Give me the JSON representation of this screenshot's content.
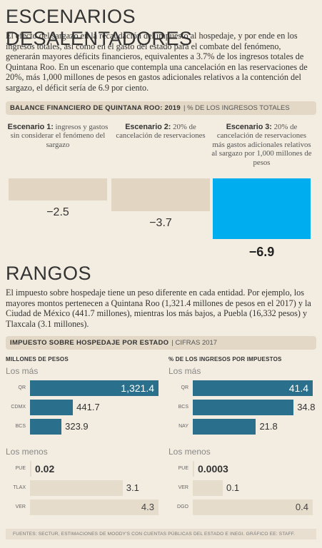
{
  "section1": {
    "title": "ESCENARIOS DESALENTADORES",
    "paragraph": "El efecto del sargazo en la recaudación del impuesto al hospedaje, y por ende en los ingresos totales, así como en el gasto del estado para el combate del fenómeno, generarán mayores déficits financieros, equivalentes a 3.7% de los ingresos totales de Quintana Roo. En un escenario que contempla una cancelación en las reservaciones de 20%, más 1,000 millones de pesos en gastos adicionales relativos a la contención del sargazo, el déficit sería de 6.9 por ciento.",
    "chart_header": "BALANCE FINANCIERO DE QUINTANA ROO: 2019",
    "chart_sub": "% DE LOS INGRESOS TOTALES"
  },
  "section2": {
    "title": "RANGOS",
    "paragraph": "El impuesto sobre hospedaje tiene un peso diferente en cada entidad. Por ejemplo, los mayores montos pertenecen a Quintana Roo (1,321.4 millones de pesos en el 2017) y la Ciudad de México (441.7 millones), mientras los más bajos, a Puebla (16,332 pesos) y Tlaxcala (3.1 millones).",
    "chart_header": "IMPUESTO SOBRE HOSPEDAJE POR ESTADO",
    "chart_sub": "CIFRAS 2017"
  },
  "footer": "FUENTES: SECTUR, ESTIMACIONES DE MOODY'S CON CUENTAS PÚBLICAS DEL ESTADO E INEGI. GRÁFICO EE: STAFF.",
  "colors": {
    "highlight": "#00adef",
    "neutral": "#e2d6c3",
    "bar_dark": "#2a6f8c",
    "bar_light": "#e6dccb"
  },
  "chart_data": [
    {
      "type": "bar",
      "title": "BALANCE FINANCIERO DE QUINTANA ROO: 2019",
      "subtitle": "% DE LOS INGRESOS TOTALES",
      "categories": [
        {
          "bold": "Escenario 1:",
          "text": "ingresos y gastos sin considerar el fenómeno del sargazo"
        },
        {
          "bold": "Escenario 2:",
          "text": "20% de cancelación de reservaciones"
        },
        {
          "bold": "Escenario 3:",
          "text": "20% de cancelación de reservaciones más gastos adicionales relativos al sargazo por 1,000 millones de pesos"
        }
      ],
      "values": [
        -2.5,
        -3.7,
        -6.9
      ],
      "labels": [
        "−2.5",
        "−3.7",
        "−6.9"
      ],
      "highlight_index": 2
    },
    {
      "type": "bar",
      "orientation": "horizontal",
      "title": "MILLONES DE PESOS",
      "groups": [
        {
          "name": "Los más",
          "categories": [
            "QR",
            "CDMX",
            "BCS"
          ],
          "values": [
            1321.4,
            441.7,
            323.9
          ],
          "labels": [
            "1,321.4",
            "441.7",
            "323.9"
          ]
        },
        {
          "name": "Los menos",
          "categories": [
            "PUE",
            "TLAX",
            "VER"
          ],
          "values": [
            0.02,
            3.1,
            4.3
          ],
          "labels": [
            "0.02",
            "3.1",
            "4.3"
          ]
        }
      ]
    },
    {
      "type": "bar",
      "orientation": "horizontal",
      "title": "% DE LOS INGRESOS POR IMPUESTOS",
      "groups": [
        {
          "name": "Los más",
          "categories": [
            "QR",
            "BCS",
            "NAY"
          ],
          "values": [
            41.4,
            34.8,
            21.8
          ],
          "labels": [
            "41.4",
            "34.8",
            "21.8"
          ]
        },
        {
          "name": "Los menos",
          "categories": [
            "PUE",
            "VER",
            "DGO"
          ],
          "values": [
            0.0003,
            0.1,
            0.4
          ],
          "labels": [
            "0.0003",
            "0.1",
            "0.4"
          ]
        }
      ]
    }
  ]
}
